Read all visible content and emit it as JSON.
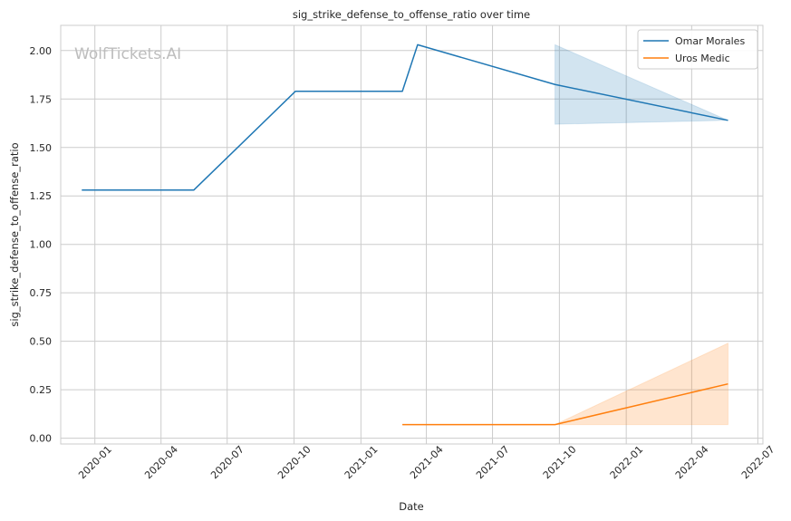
{
  "chart_data": {
    "type": "line",
    "title": "sig_strike_defense_to_offense_ratio over time",
    "xlabel": "Date",
    "ylabel": "sig_strike_defense_to_offense_ratio",
    "watermark": "WolfTickets.AI",
    "xlim": [
      "2019-11-15",
      "2022-07-08"
    ],
    "ylim": [
      -0.03,
      2.13
    ],
    "x_ticks": [
      "2020-01",
      "2020-04",
      "2020-07",
      "2020-10",
      "2021-01",
      "2021-04",
      "2021-07",
      "2021-10",
      "2022-01",
      "2022-04",
      "2022-07"
    ],
    "y_ticks": [
      0.0,
      0.25,
      0.5,
      0.75,
      1.0,
      1.25,
      1.5,
      1.75,
      2.0
    ],
    "y_tick_labels": [
      "0.00",
      "0.25",
      "0.50",
      "0.75",
      "1.00",
      "1.25",
      "1.50",
      "1.75",
      "2.00"
    ],
    "grid": true,
    "legend_position": "top-right",
    "series": [
      {
        "name": "Omar Morales",
        "color": "#1f77b4",
        "points": [
          {
            "x": "2019-12-14",
            "y": 1.28
          },
          {
            "x": "2020-05-16",
            "y": 1.28
          },
          {
            "x": "2020-10-03",
            "y": 1.79
          },
          {
            "x": "2021-02-27",
            "y": 1.79
          },
          {
            "x": "2021-03-20",
            "y": 2.03
          },
          {
            "x": "2021-09-25",
            "y": 1.825
          },
          {
            "x": "2022-05-21",
            "y": 1.64
          }
        ],
        "band": [
          {
            "x": "2021-09-25",
            "low": 1.62,
            "high": 2.03
          },
          {
            "x": "2022-05-21",
            "low": 1.64,
            "high": 1.64
          }
        ]
      },
      {
        "name": "Uros Medic",
        "color": "#ff7f0e",
        "points": [
          {
            "x": "2021-02-27",
            "y": 0.07
          },
          {
            "x": "2021-09-25",
            "y": 0.07
          },
          {
            "x": "2022-05-21",
            "y": 0.28
          }
        ],
        "band": [
          {
            "x": "2021-09-25",
            "low": 0.07,
            "high": 0.07
          },
          {
            "x": "2022-05-21",
            "low": 0.07,
            "high": 0.49
          }
        ]
      }
    ]
  }
}
